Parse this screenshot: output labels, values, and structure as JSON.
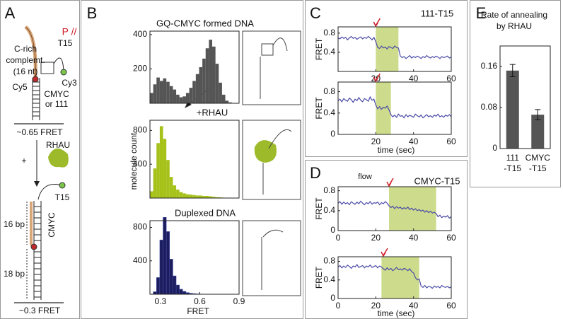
{
  "panel_labels": [
    "A",
    "B",
    "C",
    "D",
    "E"
  ],
  "diagram": {
    "labels": [
      "C-rich",
      "complemt.",
      "(16 nt)",
      "P //",
      "T15",
      "Cy5",
      "Cy3",
      "CMYC",
      "or 111",
      "~0.65 FRET",
      "+",
      "RHAU",
      "T15",
      "CMYC",
      "16 bp",
      "18 bp",
      "~0.3 FRET"
    ]
  },
  "chart_data": [
    {
      "type": "histogram",
      "title": "GQ-CMYC formed DNA",
      "color": "#555555",
      "bins": [
        0.22,
        0.245,
        0.27,
        0.295,
        0.32,
        0.345,
        0.37,
        0.395,
        0.42,
        0.445,
        0.47,
        0.495,
        0.52,
        0.545,
        0.57,
        0.595,
        0.62,
        0.645,
        0.67,
        0.695,
        0.72,
        0.745,
        0.77,
        0.795,
        0.82,
        0.845,
        0.87
      ],
      "values": [
        60,
        110,
        150,
        130,
        145,
        125,
        100,
        80,
        50,
        35,
        40,
        60,
        90,
        130,
        170,
        210,
        260,
        320,
        370,
        330,
        230,
        120,
        50,
        15,
        5,
        0
      ],
      "xlim": [
        0.22,
        0.9
      ],
      "ylim": [
        0,
        420
      ],
      "yticks": [
        200,
        400
      ]
    },
    {
      "type": "histogram",
      "title": "+RHAU",
      "ylabel": "molecule count",
      "color": "#a6c21a",
      "bins": [
        0.22,
        0.245,
        0.27,
        0.295,
        0.32,
        0.345,
        0.37,
        0.395,
        0.42,
        0.445,
        0.47,
        0.495,
        0.52,
        0.545,
        0.57,
        0.595,
        0.62,
        0.645,
        0.67,
        0.695,
        0.72,
        0.745,
        0.77,
        0.795,
        0.82,
        0.845,
        0.87
      ],
      "values": [
        80,
        350,
        650,
        850,
        700,
        450,
        250,
        150,
        100,
        70,
        55,
        45,
        40,
        35,
        30,
        30,
        25,
        25,
        20,
        15,
        10,
        8,
        5,
        3,
        2,
        0
      ],
      "xlim": [
        0.22,
        0.9
      ],
      "ylim": [
        0,
        920
      ],
      "yticks": [
        400,
        800
      ]
    },
    {
      "type": "histogram",
      "title": "Duplexed DNA",
      "xlabel": "FRET",
      "color": "#1c1c5e",
      "bins": [
        0.22,
        0.245,
        0.27,
        0.295,
        0.32,
        0.345,
        0.37,
        0.395,
        0.42,
        0.445,
        0.47,
        0.495,
        0.52,
        0.545,
        0.57,
        0.595,
        0.62,
        0.645,
        0.67,
        0.695,
        0.72,
        0.745,
        0.77,
        0.795,
        0.82,
        0.845,
        0.87
      ],
      "values": [
        0,
        30,
        200,
        650,
        920,
        750,
        420,
        220,
        110,
        60,
        35,
        20,
        12,
        8,
        5,
        3,
        2,
        2,
        1,
        1,
        0,
        0,
        0,
        0,
        0,
        0
      ],
      "xlim": [
        0.22,
        0.9
      ],
      "ylim": [
        0,
        880
      ],
      "xticks": [
        0.3,
        0.6,
        0.9
      ],
      "yticks": [
        400,
        800
      ]
    },
    {
      "type": "line",
      "title": "111-T15",
      "ylabel": "FRET",
      "color": "#4a4aa8",
      "shade_color": "#cddc8c",
      "arrow_color": "#d0202a",
      "x": [
        0,
        1,
        2,
        3,
        4,
        5,
        6,
        7,
        8,
        9,
        10,
        11,
        12,
        13,
        14,
        15,
        16,
        17,
        18,
        19,
        20,
        21,
        22,
        23,
        24,
        25,
        26,
        27,
        28,
        29,
        30,
        31,
        32,
        33,
        34,
        35,
        36,
        37,
        38,
        39,
        40,
        41,
        42,
        43,
        44,
        45,
        46,
        47,
        48,
        49,
        50,
        51,
        52,
        53,
        54,
        55,
        56,
        57,
        58,
        59,
        60
      ],
      "values": [
        0.7,
        0.68,
        0.72,
        0.69,
        0.71,
        0.66,
        0.7,
        0.73,
        0.69,
        0.71,
        0.67,
        0.7,
        0.72,
        0.68,
        0.71,
        0.69,
        0.73,
        0.7,
        0.66,
        0.71,
        0.62,
        0.5,
        0.48,
        0.53,
        0.49,
        0.51,
        0.47,
        0.52,
        0.5,
        0.48,
        0.53,
        0.5,
        0.49,
        0.32,
        0.29,
        0.31,
        0.27,
        0.3,
        0.33,
        0.28,
        0.31,
        0.29,
        0.32,
        0.3,
        0.27,
        0.31,
        0.29,
        0.33,
        0.3,
        0.28,
        0.31,
        0.29,
        0.32,
        0.3,
        0.27,
        0.31,
        0.29,
        0.3,
        0.32,
        0.28,
        0.3
      ],
      "shade": [
        20,
        32
      ],
      "arrow": 20,
      "xlim": [
        0,
        60
      ],
      "ylim": [
        0,
        0.93
      ],
      "xticks": [
        20,
        40,
        60
      ],
      "yticks": [
        0.4,
        0.8
      ]
    },
    {
      "type": "line",
      "ylabel": "FRET",
      "xlabel": "time (sec)",
      "color": "#4a4aa8",
      "shade_color": "#cddc8c",
      "arrow_color": "#d0202a",
      "x": [
        0,
        1,
        2,
        3,
        4,
        5,
        6,
        7,
        8,
        9,
        10,
        11,
        12,
        13,
        14,
        15,
        16,
        17,
        18,
        19,
        20,
        21,
        22,
        23,
        24,
        25,
        26,
        27,
        28,
        29,
        30,
        31,
        32,
        33,
        34,
        35,
        36,
        37,
        38,
        39,
        40,
        41,
        42,
        43,
        44,
        45,
        46,
        47,
        48,
        49,
        50,
        51,
        52,
        53,
        54,
        55,
        56,
        57,
        58,
        59,
        60
      ],
      "values": [
        0.63,
        0.66,
        0.61,
        0.67,
        0.64,
        0.62,
        0.68,
        0.65,
        0.6,
        0.66,
        0.63,
        0.69,
        0.64,
        0.61,
        0.67,
        0.65,
        0.62,
        0.7,
        0.64,
        0.66,
        0.55,
        0.48,
        0.52,
        0.47,
        0.51,
        0.49,
        0.53,
        0.46,
        0.37,
        0.33,
        0.36,
        0.32,
        0.38,
        0.34,
        0.35,
        0.31,
        0.37,
        0.33,
        0.36,
        0.34,
        0.32,
        0.38,
        0.35,
        0.33,
        0.36,
        0.31,
        0.34,
        0.37,
        0.33,
        0.35,
        0.32,
        0.36,
        0.34,
        0.38,
        0.33,
        0.35,
        0.32,
        0.36,
        0.34,
        0.37,
        0.33
      ],
      "shade": [
        20,
        28
      ],
      "arrow": 20,
      "xlim": [
        0,
        60
      ],
      "ylim": [
        0,
        0.98
      ],
      "xticks": [
        20,
        40,
        60
      ],
      "yticks": [
        0,
        0.4,
        0.8
      ]
    },
    {
      "type": "line",
      "title": "CMYC-T15",
      "annotation": "flow",
      "ylabel": "FRET",
      "color": "#4a4aa8",
      "shade_color": "#cddc8c",
      "arrow_color": "#d0202a",
      "x": [
        0,
        1,
        2,
        3,
        4,
        5,
        6,
        7,
        8,
        9,
        10,
        11,
        12,
        13,
        14,
        15,
        16,
        17,
        18,
        19,
        20,
        21,
        22,
        23,
        24,
        25,
        26,
        27,
        28,
        29,
        30,
        31,
        32,
        33,
        34,
        35,
        36,
        37,
        38,
        39,
        40,
        41,
        42,
        43,
        44,
        45,
        46,
        47,
        48,
        49,
        50,
        51,
        52,
        53,
        54,
        55,
        56,
        57,
        58,
        59,
        60
      ],
      "values": [
        0.55,
        0.58,
        0.53,
        0.57,
        0.54,
        0.56,
        0.52,
        0.58,
        0.55,
        0.53,
        0.57,
        0.54,
        0.59,
        0.55,
        0.52,
        0.56,
        0.54,
        0.58,
        0.53,
        0.56,
        0.55,
        0.57,
        0.52,
        0.56,
        0.54,
        0.58,
        0.55,
        0.5,
        0.46,
        0.49,
        0.44,
        0.48,
        0.45,
        0.47,
        0.43,
        0.46,
        0.44,
        0.47,
        0.42,
        0.45,
        0.41,
        0.44,
        0.4,
        0.42,
        0.39,
        0.41,
        0.37,
        0.4,
        0.36,
        0.39,
        0.35,
        0.37,
        0.34,
        0.28,
        0.31,
        0.26,
        0.29,
        0.27,
        0.3,
        0.25,
        0.28
      ],
      "shade": [
        27,
        52
      ],
      "arrow": 27,
      "xlim": [
        0,
        60
      ],
      "ylim": [
        0,
        0.88
      ],
      "xticks": [
        0,
        20,
        40,
        60
      ],
      "yticks": [
        0,
        0.4,
        0.8
      ]
    },
    {
      "type": "line",
      "ylabel": "FRET",
      "xlabel": "time (sec)",
      "color": "#4a4aa8",
      "shade_color": "#cddc8c",
      "arrow_color": "#d0202a",
      "x": [
        0,
        1,
        2,
        3,
        4,
        5,
        6,
        7,
        8,
        9,
        10,
        11,
        12,
        13,
        14,
        15,
        16,
        17,
        18,
        19,
        20,
        21,
        22,
        23,
        24,
        25,
        26,
        27,
        28,
        29,
        30,
        31,
        32,
        33,
        34,
        35,
        36,
        37,
        38,
        39,
        40,
        41,
        42,
        43,
        44,
        45,
        46,
        47,
        48,
        49,
        50,
        51,
        52,
        53,
        54,
        55,
        56,
        57,
        58,
        59,
        60
      ],
      "values": [
        0.68,
        0.71,
        0.66,
        0.7,
        0.67,
        0.72,
        0.69,
        0.65,
        0.7,
        0.68,
        0.73,
        0.67,
        0.69,
        0.71,
        0.66,
        0.7,
        0.68,
        0.72,
        0.67,
        0.69,
        0.71,
        0.66,
        0.7,
        0.68,
        0.64,
        0.61,
        0.66,
        0.62,
        0.65,
        0.6,
        0.63,
        0.67,
        0.62,
        0.64,
        0.61,
        0.65,
        0.63,
        0.6,
        0.64,
        0.58,
        0.55,
        0.45,
        0.4,
        0.42,
        0.27,
        0.24,
        0.28,
        0.23,
        0.26,
        0.25,
        0.22,
        0.27,
        0.24,
        0.26,
        0.23,
        0.28,
        0.25,
        0.24,
        0.26,
        0.23,
        0.25
      ],
      "shade": [
        23,
        43
      ],
      "arrow": 24,
      "xlim": [
        0,
        60
      ],
      "ylim": [
        0,
        0.9
      ],
      "xticks": [
        0,
        20,
        40,
        60
      ],
      "yticks": [
        0,
        0.4,
        0.8
      ]
    },
    {
      "type": "bar",
      "title": [
        "Rate of annealing",
        "by RHAU"
      ],
      "color": "#555555",
      "categories": [
        [
          "111",
          "-T15"
        ],
        [
          "CMYC",
          "-T15"
        ]
      ],
      "values": [
        0.152,
        0.066
      ],
      "errors": [
        0.012,
        0.01
      ],
      "ylim": [
        0,
        0.2
      ],
      "yticks": [
        0,
        0.08,
        0.16
      ]
    }
  ]
}
